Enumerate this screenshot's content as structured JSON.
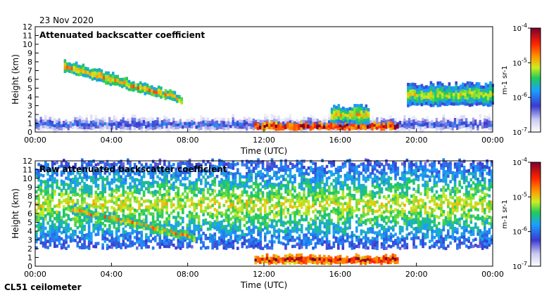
{
  "date": "23 Nov 2020",
  "instrument": "CL51 ceilometer",
  "chart_data": [
    {
      "type": "heatmap",
      "title": "Attenuated backscatter coefficient",
      "xlabel": "Time (UTC)",
      "ylabel": "Height (km)",
      "xlim": [
        0,
        24
      ],
      "ylim": [
        0,
        12
      ],
      "x_ticks": [
        "00:00",
        "04:00",
        "08:00",
        "12:00",
        "16:00",
        "20:00",
        "00:00"
      ],
      "y_ticks": [
        "0",
        "1",
        "2",
        "3",
        "4",
        "5",
        "6",
        "7",
        "8",
        "9",
        "10",
        "11",
        "12"
      ],
      "colorbar": {
        "labels": [
          "10^-4",
          "10^-5",
          "10^-6",
          "10^-7"
        ],
        "unit": "m-1 sr-1",
        "range_log10": [
          -7,
          -4
        ]
      },
      "features": [
        {
          "name": "cirrus layer",
          "t_start": 1.5,
          "t_end": 7.7,
          "h_top_start": 8.2,
          "h_top_end": 4.2,
          "h_base_start": 6.8,
          "h_base_end": 3.2,
          "level": -5.3
        },
        {
          "name": "boundary layer aerosol",
          "t_start": 0,
          "t_end": 24,
          "h_top": 1.8,
          "level": -6.6
        },
        {
          "name": "low cloud",
          "t_start": 11.5,
          "t_end": 19.0,
          "h_base": 0.3,
          "h_top": 1.0,
          "level": -4.6
        },
        {
          "name": "mid-level cloud",
          "t_start": 15.5,
          "t_end": 17.5,
          "h_base": 1.0,
          "h_top": 3.0,
          "level": -5.4
        },
        {
          "name": "upper cloud fragments",
          "t_start": 19.5,
          "t_end": 24,
          "h_base": 3.0,
          "h_top": 5.5,
          "level": -5.6
        }
      ]
    },
    {
      "type": "heatmap",
      "title": "Raw attenuated backscatter coefficient",
      "xlabel": "Time (UTC)",
      "ylabel": "Height (km)",
      "xlim": [
        0,
        24
      ],
      "ylim": [
        0,
        12
      ],
      "x_ticks": [
        "00:00",
        "04:00",
        "08:00",
        "12:00",
        "16:00",
        "20:00",
        "00:00"
      ],
      "y_ticks": [
        "0",
        "1",
        "2",
        "3",
        "4",
        "5",
        "6",
        "7",
        "8",
        "9",
        "10",
        "11",
        "12"
      ],
      "colorbar": {
        "labels": [
          "10^-4",
          "10^-5",
          "10^-6",
          "10^-7"
        ],
        "unit": "m-1 sr-1",
        "range_log10": [
          -7,
          -4
        ]
      },
      "features": [
        {
          "name": "noisy background",
          "t_start": 0,
          "t_end": 24,
          "h_base": 2.0,
          "h_top": 12,
          "level": -5.6
        },
        {
          "name": "cirrus layer",
          "t_start": 1.8,
          "t_end": 8.3,
          "h_top_start": 7.2,
          "h_top_end": 3.6,
          "h_base_start": 6.0,
          "h_base_end": 2.8,
          "level": -5.3
        },
        {
          "name": "low cloud",
          "t_start": 11.5,
          "t_end": 19.0,
          "h_base": 0.3,
          "h_top": 1.2,
          "level": -4.6
        }
      ]
    }
  ]
}
